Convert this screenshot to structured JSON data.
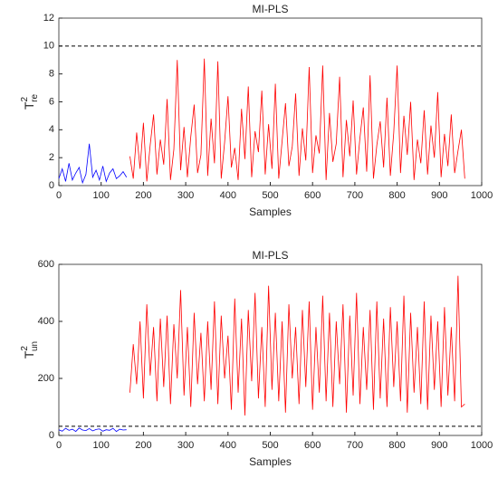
{
  "chart_data": [
    {
      "type": "line",
      "title": "MI-PLS",
      "xlabel": "Samples",
      "ylabel": {
        "base": "T",
        "sup": "2",
        "sub": "re"
      },
      "xlim": [
        0,
        1000
      ],
      "xticks": [
        0,
        100,
        200,
        300,
        400,
        500,
        600,
        700,
        800,
        900,
        1000
      ],
      "ylim": [
        0,
        12
      ],
      "yticks": [
        0,
        2,
        4,
        6,
        8,
        10,
        12
      ],
      "threshold": 10,
      "threshold_color": "#000000",
      "series": [
        {
          "color": "#0000ff",
          "x": [
            0,
            8,
            16,
            24,
            32,
            40,
            48,
            56,
            64,
            72,
            80,
            88,
            96,
            104,
            112,
            120,
            128,
            136,
            144,
            152,
            160
          ],
          "values": [
            0.5,
            1.2,
            0.3,
            1.6,
            0.4,
            0.9,
            1.3,
            0.2,
            0.8,
            3.0,
            0.6,
            1.1,
            0.4,
            1.4,
            0.3,
            0.9,
            1.2,
            0.5,
            0.7,
            1.0,
            0.6
          ]
        },
        {
          "color": "#ff0000",
          "x": [
            168,
            176,
            184,
            192,
            200,
            208,
            216,
            224,
            232,
            240,
            248,
            256,
            264,
            272,
            280,
            288,
            296,
            304,
            312,
            320,
            328,
            336,
            344,
            352,
            360,
            368,
            376,
            384,
            392,
            400,
            408,
            416,
            424,
            432,
            440,
            448,
            456,
            464,
            472,
            480,
            488,
            496,
            504,
            512,
            520,
            528,
            536,
            544,
            552,
            560,
            568,
            576,
            584,
            592,
            600,
            608,
            616,
            624,
            632,
            640,
            648,
            656,
            664,
            672,
            680,
            688,
            696,
            704,
            712,
            720,
            728,
            736,
            744,
            752,
            760,
            768,
            776,
            784,
            792,
            800,
            808,
            816,
            824,
            832,
            840,
            848,
            856,
            864,
            872,
            880,
            888,
            896,
            904,
            912,
            920,
            928,
            936,
            944,
            952,
            960
          ],
          "values": [
            2.1,
            0.5,
            3.8,
            1.2,
            4.5,
            0.3,
            2.9,
            5.1,
            0.8,
            3.3,
            1.5,
            6.2,
            0.4,
            2.6,
            9.0,
            1.1,
            4.2,
            0.6,
            3.5,
            5.8,
            0.9,
            2.2,
            9.1,
            0.7,
            4.8,
            1.6,
            8.9,
            0.5,
            3.1,
            6.4,
            1.3,
            2.7,
            0.4,
            5.5,
            1.9,
            7.1,
            0.6,
            3.9,
            2.4,
            6.8,
            0.8,
            4.4,
            1.2,
            7.3,
            0.5,
            3.2,
            5.9,
            1.4,
            2.8,
            6.6,
            0.7,
            4.1,
            1.8,
            8.5,
            0.9,
            3.6,
            2.3,
            8.6,
            0.4,
            5.2,
            1.7,
            3.0,
            7.8,
            0.6,
            4.7,
            2.1,
            6.1,
            0.8,
            3.4,
            5.6,
            1.0,
            7.9,
            0.5,
            2.9,
            4.6,
            1.3,
            6.3,
            0.7,
            3.8,
            8.6,
            0.9,
            5.0,
            2.2,
            6.0,
            0.4,
            3.3,
            1.6,
            5.4,
            0.8,
            4.3,
            2.0,
            6.7,
            0.6,
            3.7,
            1.4,
            5.1,
            0.9,
            2.5,
            4.0,
            0.5
          ]
        }
      ]
    },
    {
      "type": "line",
      "title": "MI-PLS",
      "xlabel": "Samples",
      "ylabel": {
        "base": "T",
        "sup": "2",
        "sub": "un"
      },
      "xlim": [
        0,
        1000
      ],
      "xticks": [
        0,
        100,
        200,
        300,
        400,
        500,
        600,
        700,
        800,
        900,
        1000
      ],
      "ylim": [
        0,
        600
      ],
      "yticks": [
        0,
        200,
        400,
        600
      ],
      "threshold": 32,
      "threshold_color": "#000000",
      "series": [
        {
          "color": "#0000ff",
          "x": [
            0,
            8,
            16,
            24,
            32,
            40,
            48,
            56,
            64,
            72,
            80,
            88,
            96,
            104,
            112,
            120,
            128,
            136,
            144,
            152,
            160
          ],
          "values": [
            20,
            15,
            25,
            18,
            22,
            14,
            26,
            19,
            17,
            24,
            16,
            21,
            23,
            15,
            20,
            18,
            25,
            14,
            22,
            19,
            20
          ]
        },
        {
          "color": "#ff0000",
          "x": [
            168,
            176,
            184,
            192,
            200,
            208,
            216,
            224,
            232,
            240,
            248,
            256,
            264,
            272,
            280,
            288,
            296,
            304,
            312,
            320,
            328,
            336,
            344,
            352,
            360,
            368,
            376,
            384,
            392,
            400,
            408,
            416,
            424,
            432,
            440,
            448,
            456,
            464,
            472,
            480,
            488,
            496,
            504,
            512,
            520,
            528,
            536,
            544,
            552,
            560,
            568,
            576,
            584,
            592,
            600,
            608,
            616,
            624,
            632,
            640,
            648,
            656,
            664,
            672,
            680,
            688,
            696,
            704,
            712,
            720,
            728,
            736,
            744,
            752,
            760,
            768,
            776,
            784,
            792,
            800,
            808,
            816,
            824,
            832,
            840,
            848,
            856,
            864,
            872,
            880,
            888,
            896,
            904,
            912,
            920,
            928,
            936,
            944,
            952,
            960
          ],
          "values": [
            150,
            320,
            180,
            400,
            130,
            460,
            210,
            380,
            120,
            410,
            170,
            420,
            110,
            390,
            200,
            510,
            140,
            380,
            100,
            430,
            180,
            360,
            120,
            400,
            160,
            470,
            110,
            420,
            200,
            350,
            90,
            480,
            150,
            410,
            70,
            440,
            190,
            500,
            130,
            380,
            100,
            525,
            160,
            430,
            120,
            400,
            80,
            460,
            200,
            380,
            110,
            440,
            170,
            470,
            90,
            380,
            150,
            490,
            120,
            430,
            100,
            400,
            180,
            460,
            80,
            420,
            140,
            500,
            110,
            380,
            160,
            440,
            90,
            470,
            130,
            410,
            100,
            450,
            170,
            400,
            120,
            490,
            80,
            430,
            150,
            380,
            110,
            470,
            90,
            420,
            160,
            400,
            100,
            450,
            140,
            380,
            120,
            560,
            100,
            110
          ]
        }
      ]
    }
  ]
}
